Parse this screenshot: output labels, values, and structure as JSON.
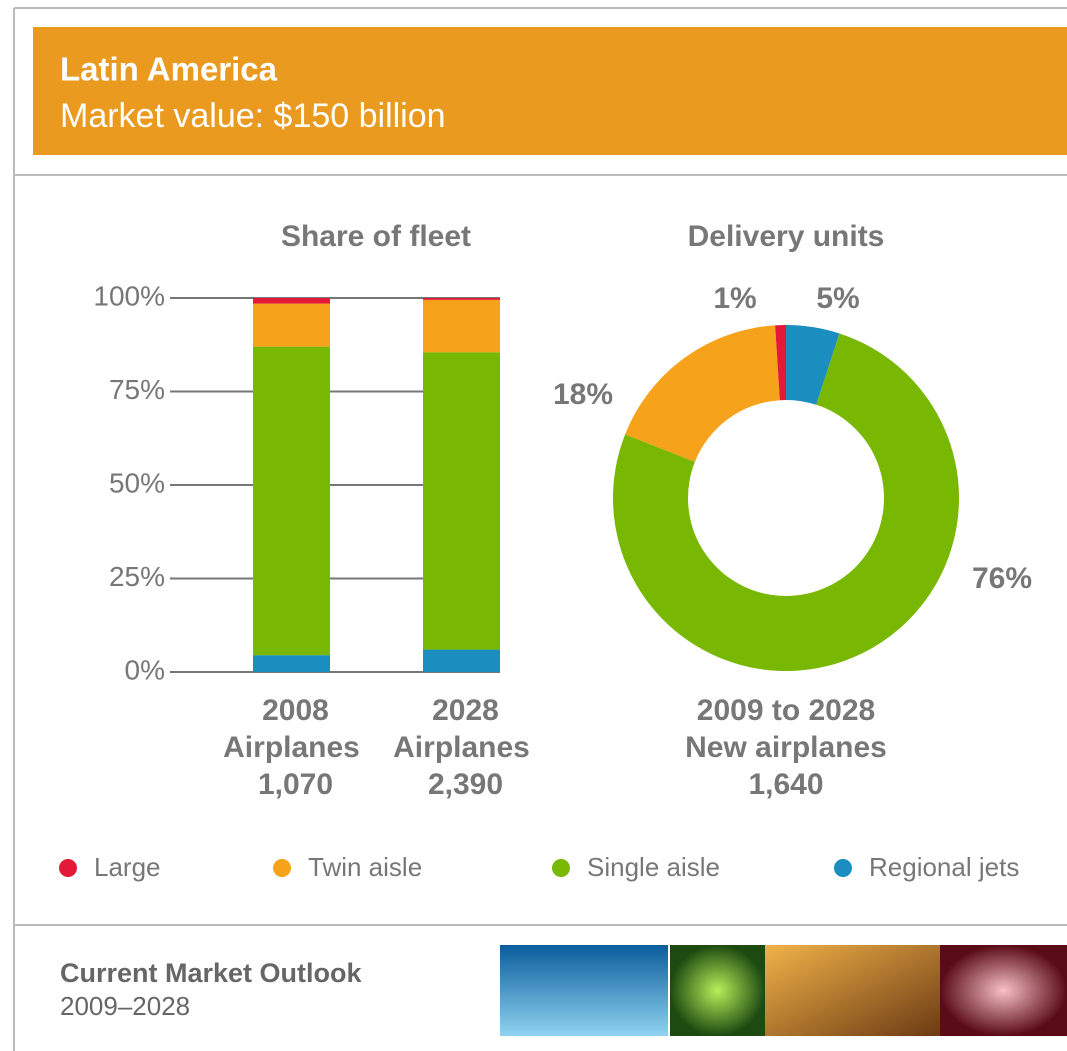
{
  "header": {
    "title": "Latin America",
    "subtitle": "Market value: $150 billion"
  },
  "chart_data": [
    {
      "type": "bar",
      "stacked": true,
      "title": "Share of fleet",
      "categories": [
        [
          "2008",
          "Airplanes",
          "1,070"
        ],
        [
          "2028",
          "Airplanes",
          "2,390"
        ]
      ],
      "series": [
        {
          "name": "Large",
          "color": "#e31937",
          "values": [
            1.5,
            0.5
          ]
        },
        {
          "name": "Twin aisle",
          "color": "#f7a21b",
          "values": [
            11.5,
            14
          ]
        },
        {
          "name": "Single aisle",
          "color": "#79b802",
          "values": [
            82.5,
            79.5
          ]
        },
        {
          "name": "Regional jets",
          "color": "#1a8fbf",
          "values": [
            4.5,
            6
          ]
        }
      ],
      "ylim": [
        0,
        100
      ],
      "yticks": [
        {
          "value": 0,
          "label": "0%"
        },
        {
          "value": 25,
          "label": "25%"
        },
        {
          "value": 50,
          "label": "50%"
        },
        {
          "value": 75,
          "label": "75%"
        },
        {
          "value": 100,
          "label": "100%"
        }
      ],
      "grid": true
    },
    {
      "type": "pie",
      "donut": true,
      "title": "Delivery units",
      "caption": [
        "2009 to 2028",
        "New airplanes",
        "1,640"
      ],
      "values": [
        5,
        76,
        18,
        1
      ],
      "value_labels": [
        "5%",
        "76%",
        "18%",
        "1%"
      ],
      "colors": [
        "#1a8fbf",
        "#79b802",
        "#f7a21b",
        "#e31937"
      ]
    }
  ],
  "footer": {
    "title": "Current Market Outlook",
    "subtitle": "2009–2028"
  }
}
